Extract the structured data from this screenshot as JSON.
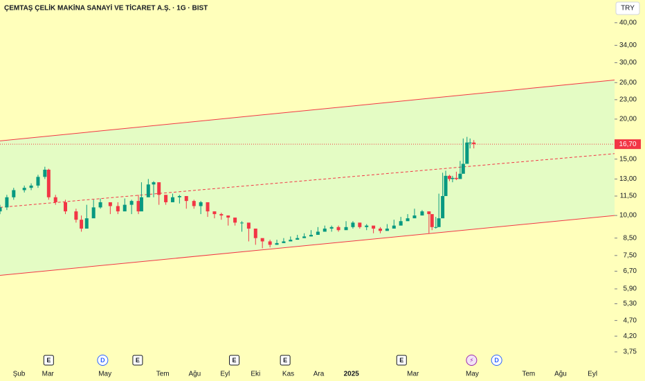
{
  "chart_data": {
    "type": "candlestick",
    "title": "ÇEMTAŞ ÇELİK MAKİNA SANAYİ VE TİCARET A.Ş. · 1G · BIST",
    "currency": "TRY",
    "log_scale": true,
    "ylim": [
      3.36,
      47.1
    ],
    "yticks": [
      {
        "value": 40,
        "label": "40,00"
      },
      {
        "value": 34,
        "label": "34,00"
      },
      {
        "value": 30,
        "label": "30,00"
      },
      {
        "value": 26,
        "label": "26,00"
      },
      {
        "value": 23,
        "label": "23,00"
      },
      {
        "value": 20,
        "label": "20,00"
      },
      {
        "value": 15,
        "label": "15,00"
      },
      {
        "value": 13,
        "label": "13,00"
      },
      {
        "value": 11.5,
        "label": "11,50"
      },
      {
        "value": 10,
        "label": "10,00"
      },
      {
        "value": 8.5,
        "label": "8,50"
      },
      {
        "value": 7.5,
        "label": "7,50"
      },
      {
        "value": 6.7,
        "label": "6,70"
      },
      {
        "value": 5.9,
        "label": "5,90"
      },
      {
        "value": 5.3,
        "label": "5,30"
      },
      {
        "value": 4.7,
        "label": "4,70"
      },
      {
        "value": 4.2,
        "label": "4,20"
      },
      {
        "value": 3.75,
        "label": "3,75"
      }
    ],
    "xlim": [
      0,
      808
    ],
    "xticks": [
      {
        "value": 25,
        "label": "Şub"
      },
      {
        "value": 63,
        "label": "Mar"
      },
      {
        "value": 138,
        "label": "May"
      },
      {
        "value": 214,
        "label": "Tem"
      },
      {
        "value": 256,
        "label": "Ağu"
      },
      {
        "value": 296,
        "label": "Eyl"
      },
      {
        "value": 336,
        "label": "Eki"
      },
      {
        "value": 379,
        "label": "Kas"
      },
      {
        "value": 419,
        "label": "Ara"
      },
      {
        "value": 462,
        "label": "2025"
      },
      {
        "value": 543,
        "label": "Mar"
      },
      {
        "value": 621,
        "label": "May"
      },
      {
        "value": 695,
        "label": "Tem"
      },
      {
        "value": 737,
        "label": "Ağu"
      },
      {
        "value": 779,
        "label": "Eyl"
      }
    ],
    "up_color": "#089981",
    "down_color": "#f23645",
    "candles": {
      "x": [
        0,
        9,
        18,
        32,
        41,
        50,
        59,
        64,
        73,
        86,
        100,
        107,
        114,
        123,
        132,
        145,
        155,
        164,
        173,
        182,
        186,
        195,
        202,
        209,
        218,
        227,
        236,
        245,
        255,
        264,
        273,
        282,
        291,
        300,
        309,
        318,
        327,
        336,
        345,
        355,
        364,
        373,
        382,
        391,
        400,
        409,
        418,
        427,
        436,
        445,
        455,
        464,
        473,
        482,
        491,
        500,
        509,
        518,
        527,
        536,
        545,
        555,
        564,
        568,
        573,
        577,
        582,
        586,
        591,
        595,
        600,
        605,
        609,
        614,
        618,
        623
      ],
      "open": [
        10.3,
        10.6,
        11.4,
        12.0,
        12.2,
        12.4,
        13.2,
        13.9,
        11.4,
        11.0,
        10.3,
        9.7,
        9.1,
        9.8,
        10.6,
        11.0,
        10.7,
        10.3,
        10.8,
        11.1,
        10.3,
        11.4,
        12.5,
        12.7,
        11.6,
        11.0,
        11.4,
        11.5,
        11.1,
        10.7,
        11.0,
        10.3,
        10.1,
        10.0,
        9.85,
        9.5,
        9.5,
        9.1,
        8.5,
        8.3,
        8.1,
        8.2,
        8.3,
        8.4,
        8.5,
        8.6,
        8.7,
        8.9,
        9.1,
        9.2,
        9.0,
        9.2,
        9.5,
        9.2,
        9.3,
        9.1,
        8.95,
        9.1,
        9.3,
        9.6,
        9.8,
        10.0,
        10.3,
        10.1,
        9.2,
        9.2,
        9.8,
        11.5,
        13.3,
        13.0,
        13.1,
        13.0,
        13.5,
        14.5,
        16.9,
        16.9
      ],
      "high": [
        10.8,
        11.6,
        12.2,
        12.4,
        12.6,
        13.4,
        14.2,
        14.0,
        11.6,
        11.2,
        10.5,
        10.0,
        10.8,
        11.2,
        11.3,
        10.9,
        11.0,
        11.3,
        11.2,
        11.6,
        12.7,
        13.0,
        12.8,
        11.8,
        11.6,
        11.7,
        11.6,
        11.3,
        11.2,
        11.1,
        10.5,
        10.3,
        10.2,
        10.0,
        9.7,
        9.6,
        9.2,
        8.7,
        8.4,
        8.4,
        8.4,
        8.5,
        8.6,
        8.7,
        8.8,
        9.0,
        9.2,
        9.3,
        9.3,
        9.3,
        9.6,
        9.6,
        9.4,
        9.4,
        9.2,
        9.2,
        9.4,
        9.7,
        9.9,
        10.1,
        10.5,
        10.4,
        10.2,
        9.4,
        9.9,
        11.7,
        13.6,
        13.8,
        13.4,
        13.3,
        13.7,
        14.8,
        17.4,
        17.6,
        17.4,
        17.2
      ],
      "low": [
        10.1,
        10.4,
        11.2,
        11.8,
        12.0,
        12.2,
        13.0,
        11.2,
        10.8,
        10.1,
        9.5,
        8.9,
        9.6,
        10.4,
        10.5,
        10.1,
        10.1,
        10.6,
        10.1,
        10.1,
        11.2,
        12.3,
        11.4,
        10.8,
        10.8,
        11.2,
        10.9,
        10.5,
        10.5,
        10.1,
        9.9,
        9.8,
        9.7,
        9.3,
        9.3,
        8.9,
        8.3,
        8.1,
        7.9,
        7.95,
        8.1,
        8.2,
        8.3,
        8.4,
        8.5,
        8.6,
        8.8,
        9.0,
        8.9,
        8.9,
        9.1,
        9.1,
        9.1,
        9.0,
        8.8,
        8.8,
        9.0,
        9.2,
        9.5,
        9.7,
        9.9,
        10.0,
        8.8,
        9.0,
        9.1,
        9.7,
        11.3,
        12.5,
        12.8,
        12.7,
        12.9,
        13.3,
        14.3,
        16.3,
        16.2,
        16.2
      ],
      "close": [
        10.6,
        11.4,
        12.0,
        12.2,
        12.4,
        13.2,
        13.9,
        11.4,
        11.0,
        10.3,
        9.7,
        9.1,
        9.8,
        10.6,
        11.0,
        10.7,
        10.3,
        10.8,
        11.1,
        10.3,
        11.4,
        12.5,
        12.7,
        11.6,
        11.0,
        11.4,
        11.5,
        11.1,
        10.7,
        11.0,
        10.3,
        10.1,
        10.0,
        9.85,
        9.5,
        9.5,
        9.1,
        8.5,
        8.3,
        8.1,
        8.2,
        8.3,
        8.4,
        8.5,
        8.6,
        8.7,
        8.9,
        9.1,
        9.2,
        9.0,
        9.2,
        9.5,
        9.2,
        9.3,
        9.1,
        8.95,
        9.1,
        9.3,
        9.6,
        9.8,
        10.0,
        10.3,
        10.1,
        9.2,
        9.2,
        9.8,
        11.5,
        13.3,
        13.0,
        13.1,
        13.0,
        13.5,
        14.5,
        16.9,
        16.9,
        16.7
      ]
    },
    "channel": {
      "x": [
        0,
        808
      ],
      "upper": [
        17.1,
        26.5
      ],
      "middle": [
        10.6,
        15.6
      ],
      "lower": [
        6.5,
        10.0
      ],
      "color": "#f23645",
      "fill": "#e4fcc4"
    },
    "last_price": {
      "value": 16.7,
      "label": "16,70"
    },
    "events": [
      {
        "label": "E",
        "x": 64
      },
      {
        "label": "D",
        "x": 135
      },
      {
        "label": "E",
        "x": 181
      },
      {
        "label": "E",
        "x": 308
      },
      {
        "label": "E",
        "x": 375
      },
      {
        "label": "E",
        "x": 528
      },
      {
        "label": "⚡",
        "x": 620
      },
      {
        "label": "D",
        "x": 653
      }
    ]
  }
}
